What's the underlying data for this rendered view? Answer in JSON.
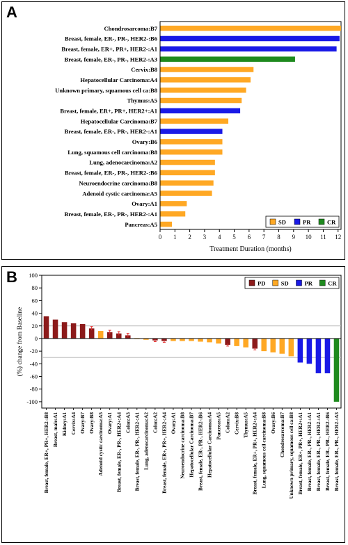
{
  "panels": {
    "a_label": "A",
    "b_label": "B"
  },
  "colors": {
    "SD": "#FFA824",
    "PR": "#1919E6",
    "CR": "#1E8A1E",
    "PD": "#8C1A1A"
  },
  "chart_data": [
    {
      "type": "bar",
      "orientation": "horizontal",
      "title": "",
      "xlabel": "Treatment Duration (months)",
      "ylabel": "",
      "xlim": [
        0,
        12.2
      ],
      "xticks": [
        0,
        1,
        2,
        3,
        4,
        5,
        6,
        7,
        8,
        9,
        10,
        11,
        12
      ],
      "grid": false,
      "legend": {
        "placement": "bottom-right",
        "entries": [
          "SD",
          "PR",
          "CR"
        ]
      },
      "categories": [
        "Chondrosarcoma:B7",
        "Breast, female, ER-, PR-, HER2-:B6",
        "Breast, female, ER+, PR+, HER2-:A1",
        "Breast, female, ER-, PR-, HER2-:A3",
        "Cervix:B8",
        "Hepatocellular Carcinoma:A4",
        "Unknown primary, squamous cell ca:B8",
        "Thymus:A5",
        "Breast, female, ER+, PR+, HER2+:A1",
        "Hepatocellular Carcinoma:B7",
        "Breast, female, ER-, PR-, HER2-:A1",
        "Ovary:B6",
        "Lung, squamous cell carcinoma:B8",
        "Lung, adenocarcinoma:A2",
        "Breast, female, ER-, PR-, HER2-:B6",
        "Neuroendocrine carcinoma:B8",
        "Adenoid cystic carcinoma:A5",
        "Ovary:A1",
        "Breast, female, ER-, PR-, HER2-:A1",
        "Pancreas:A5"
      ],
      "values": [
        12.2,
        12.1,
        11.9,
        9.1,
        6.3,
        6.1,
        5.8,
        5.5,
        5.4,
        4.6,
        4.2,
        4.2,
        4.2,
        3.7,
        3.7,
        3.6,
        3.5,
        1.8,
        1.7,
        0.8
      ],
      "response": [
        "SD",
        "PR",
        "PR",
        "CR",
        "SD",
        "SD",
        "SD",
        "SD",
        "PR",
        "SD",
        "PR",
        "SD",
        "SD",
        "SD",
        "SD",
        "SD",
        "SD",
        "SD",
        "SD",
        "SD"
      ]
    },
    {
      "type": "bar",
      "title": "",
      "xlabel": "",
      "ylabel": "(%) change from Baseline",
      "ylim": [
        -110,
        100
      ],
      "yticks": [
        100,
        80,
        60,
        40,
        20,
        0,
        -20,
        -40,
        -60,
        -80,
        -100
      ],
      "reference_lines": [
        20,
        -30
      ],
      "grid": false,
      "legend": {
        "placement": "top-right",
        "entries": [
          "PD",
          "SD",
          "PR",
          "CR"
        ]
      },
      "categories": [
        "Breast, female, ER+, PR+, HER2-:B8",
        "Breast, male:A1",
        "Kidney:A1",
        "Cervix:A4",
        "Ovary:B7",
        "Ovary:B8",
        "Adenoid cystic carcinoma:A5",
        "Ovary:A1",
        "Breast, female, ER-, PR-, HER2+:A4",
        "Colon:A3",
        "Breast, female, ER-, PR-, HER2-:A1",
        "Lung, adenocarcinoma:A2",
        "Colon:A2",
        "Breast, female, ER+, PR+, HER2-:A4",
        "Ovary:A1",
        "Neuroendocrine carcinoma:B8",
        "Hepatocellular Carcinoma:B7",
        "Breast, female, ER-, PR-, HER2-:B6",
        "Hepatocellular Carcinoma:A4",
        "Pancreas:A5",
        "Colon:A2",
        "Cervix:B8",
        "Thymus:A5",
        "Breast, female, ER+, PR+, HER2+:A4",
        "Lung, squamous cell carcinoma:B8",
        "Ovary:B6",
        "Chondrosarcoma:B7",
        "Unknown primary, squamous cell ca:B8",
        "Breast, female, ER+, PR+, HER2+:A1",
        "Breast, female, ER-, PR-, HER2-:A1",
        "Breast, female, ER-, PR-, HER2-:A1",
        "Breast, female, ER-, PR-, HER2-:B6",
        "Breast, female, ER-, PR-, HER2-:A3"
      ],
      "values": [
        35,
        30,
        26,
        24,
        23,
        16,
        12,
        10,
        8,
        5,
        -1,
        -2,
        -3,
        -4,
        -4,
        -4,
        -4,
        -5,
        -6,
        -8,
        -10,
        -12,
        -14,
        -16,
        -20,
        -22,
        -24,
        -28,
        -38,
        -40,
        -55,
        -55,
        -100
      ],
      "response": [
        "PD",
        "PD",
        "PD",
        "PD",
        "PD",
        "PD",
        "SD",
        "PD",
        "PD",
        "PD",
        "SD",
        "SD",
        "PD",
        "PD",
        "SD",
        "SD",
        "SD",
        "SD",
        "SD",
        "SD",
        "PD",
        "SD",
        "SD",
        "PD",
        "SD",
        "SD",
        "SD",
        "SD",
        "PR",
        "PR",
        "PR",
        "PR",
        "CR"
      ],
      "error_bars": [
        0,
        0,
        0,
        0,
        0,
        3,
        0,
        3,
        3,
        3,
        0,
        0,
        2,
        2,
        0,
        0,
        0,
        0,
        0,
        0,
        2,
        0,
        0,
        2,
        0,
        0,
        0,
        0,
        0,
        0,
        0,
        0,
        0
      ]
    }
  ]
}
